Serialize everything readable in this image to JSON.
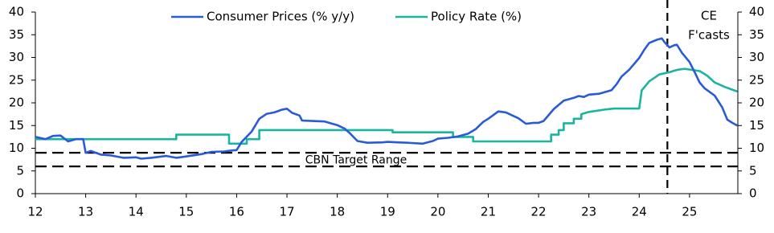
{
  "chart_data": {
    "type": "line",
    "series": [
      {
        "name": "Consumer Prices (% y/y)",
        "color": "#2a5bd7",
        "x": [
          12.0,
          12.2,
          12.35,
          12.5,
          12.65,
          12.8,
          12.95,
          13.0,
          13.1,
          13.3,
          13.5,
          13.75,
          14.0,
          14.1,
          14.3,
          14.6,
          14.8,
          15.0,
          15.3,
          15.5,
          15.75,
          15.9,
          16.0,
          16.1,
          16.3,
          16.45,
          16.6,
          16.75,
          16.9,
          17.0,
          17.1,
          17.25,
          17.3,
          17.5,
          17.75,
          17.9,
          18.0,
          18.15,
          18.25,
          18.4,
          18.6,
          18.9,
          19.0,
          19.2,
          19.4,
          19.7,
          19.9,
          20.0,
          20.2,
          20.4,
          20.6,
          20.75,
          20.9,
          21.0,
          21.2,
          21.35,
          21.6,
          21.75,
          21.9,
          22.0,
          22.1,
          22.3,
          22.5,
          22.7,
          22.8,
          22.9,
          23.0,
          23.2,
          23.45,
          23.55,
          23.65,
          23.8,
          24.0,
          24.1,
          24.2,
          24.35,
          24.45,
          24.5,
          24.6,
          24.7,
          24.75,
          24.85,
          25.0,
          25.1,
          25.2,
          25.3,
          25.5,
          25.65,
          25.75,
          25.85,
          25.95
        ],
        "values": [
          12.5,
          12.0,
          12.7,
          12.8,
          11.5,
          12.0,
          12.0,
          9.0,
          9.4,
          8.6,
          8.4,
          7.9,
          8.0,
          7.7,
          7.9,
          8.3,
          7.9,
          8.2,
          8.7,
          9.2,
          9.3,
          9.5,
          9.6,
          11.4,
          13.7,
          16.5,
          17.6,
          17.9,
          18.5,
          18.7,
          17.8,
          17.2,
          16.1,
          16.0,
          15.9,
          15.4,
          15.1,
          14.3,
          13.3,
          11.6,
          11.2,
          11.3,
          11.4,
          11.3,
          11.2,
          11.0,
          11.6,
          12.1,
          12.3,
          12.6,
          13.2,
          14.2,
          15.8,
          16.5,
          18.1,
          17.9,
          16.6,
          15.4,
          15.6,
          15.6,
          16.0,
          18.6,
          20.5,
          21.1,
          21.5,
          21.3,
          21.8,
          22.0,
          22.8,
          24.1,
          25.8,
          27.3,
          29.9,
          31.7,
          33.2,
          33.9,
          34.2,
          33.4,
          32.2,
          32.7,
          32.8,
          31.0,
          29.0,
          26.8,
          24.5,
          23.2,
          21.6,
          19.0,
          16.3,
          15.6,
          15.0
        ]
      },
      {
        "name": "Policy Rate (%)",
        "color": "#1ab5a0",
        "x": [
          12.0,
          14.8,
          14.8,
          15.85,
          15.85,
          16.2,
          16.2,
          16.45,
          16.45,
          19.1,
          19.1,
          20.3,
          20.3,
          20.7,
          20.7,
          22.25,
          22.25,
          22.4,
          22.4,
          22.5,
          22.5,
          22.7,
          22.7,
          22.85,
          22.85,
          23.0,
          23.3,
          23.5,
          24.0,
          24.05,
          24.2,
          24.4,
          24.6,
          24.75,
          24.9,
          25.2,
          25.35,
          25.5,
          25.7,
          25.95
        ],
        "values": [
          12,
          12,
          13,
          13,
          11,
          11,
          12,
          12,
          14,
          14,
          13.5,
          13.5,
          12.5,
          12.5,
          11.5,
          11.5,
          13,
          13,
          14,
          14,
          15.5,
          15.5,
          16.5,
          16.5,
          17.5,
          18,
          18.5,
          18.75,
          18.75,
          22.75,
          24.75,
          26.25,
          26.75,
          27.25,
          27.5,
          27,
          26,
          24.5,
          23.5,
          22.5
        ]
      }
    ],
    "xlim": [
      12,
      25.96
    ],
    "xticks": [
      12,
      13,
      14,
      15,
      16,
      17,
      18,
      19,
      20,
      21,
      22,
      23,
      24,
      25
    ],
    "ylim": [
      0,
      40
    ],
    "yticks": [
      0,
      5,
      10,
      15,
      20,
      25,
      30,
      35,
      40
    ],
    "y2lim": [
      0,
      40
    ],
    "y2ticks": [
      0,
      5,
      10,
      15,
      20,
      25,
      30,
      35,
      40
    ],
    "target_range": {
      "label": "CBN Target Range",
      "values": [
        9,
        6
      ]
    },
    "forecast": {
      "x": 24.56,
      "label": [
        "CE",
        "F'casts"
      ]
    },
    "legend": "top"
  }
}
